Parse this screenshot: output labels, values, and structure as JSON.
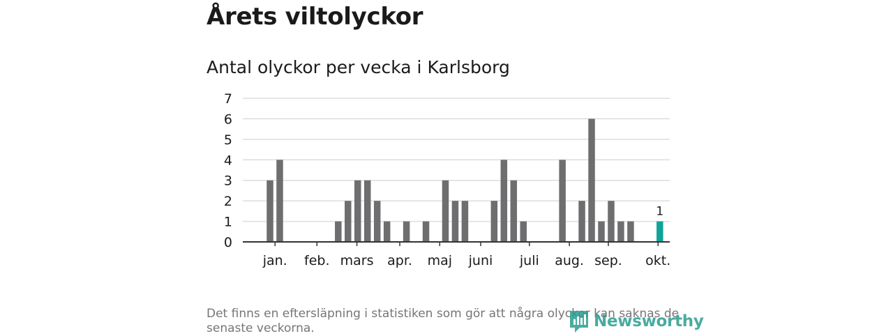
{
  "title": "Årets viltolyckor",
  "subtitle": "Antal olyckor per vecka i Karlsborg",
  "footnote": "Det finns en eftersläpning i statistiken som gör att några olyckor kan saknas de senaste veckorna.",
  "logo_text": "Newsworthy",
  "colors": {
    "bar": "#6e6e70",
    "highlight": "#0fa39a",
    "grid": "#dddddd",
    "axis": "#333333"
  },
  "chart_data": {
    "type": "bar",
    "title": "Antal olyckor per vecka i Karlsborg",
    "xlabel": "",
    "ylabel": "",
    "ylim": [
      0,
      7
    ],
    "yticks": [
      0,
      1,
      2,
      3,
      4,
      5,
      6,
      7
    ],
    "x": [
      1,
      2,
      3,
      4,
      5,
      6,
      7,
      8,
      9,
      10,
      11,
      12,
      13,
      14,
      15,
      16,
      17,
      18,
      19,
      20,
      21,
      22,
      23,
      24,
      25,
      26,
      27,
      28,
      29,
      30,
      31,
      32,
      33,
      34,
      35,
      36,
      37,
      38,
      39,
      40,
      41,
      42,
      43,
      44
    ],
    "values": [
      0,
      3,
      4,
      0,
      0,
      0,
      0,
      0,
      1,
      2,
      3,
      3,
      2,
      1,
      0,
      1,
      0,
      1,
      0,
      3,
      2,
      2,
      0,
      0,
      2,
      4,
      3,
      1,
      0,
      0,
      0,
      4,
      0,
      2,
      6,
      1,
      2,
      1,
      1,
      0,
      0,
      1,
      0,
      0
    ],
    "highlight_index": 41,
    "highlight_label": "1",
    "month_labels": [
      {
        "label": "jan.",
        "week": 2.5
      },
      {
        "label": "feb.",
        "week": 6.8
      },
      {
        "label": "mars",
        "week": 10.9
      },
      {
        "label": "apr.",
        "week": 15.3
      },
      {
        "label": "maj",
        "week": 19.4
      },
      {
        "label": "juni",
        "week": 23.6
      },
      {
        "label": "juli",
        "week": 28.6
      },
      {
        "label": "aug.",
        "week": 32.7
      },
      {
        "label": "sep.",
        "week": 36.7
      },
      {
        "label": "okt.",
        "week": 41.8
      }
    ]
  }
}
